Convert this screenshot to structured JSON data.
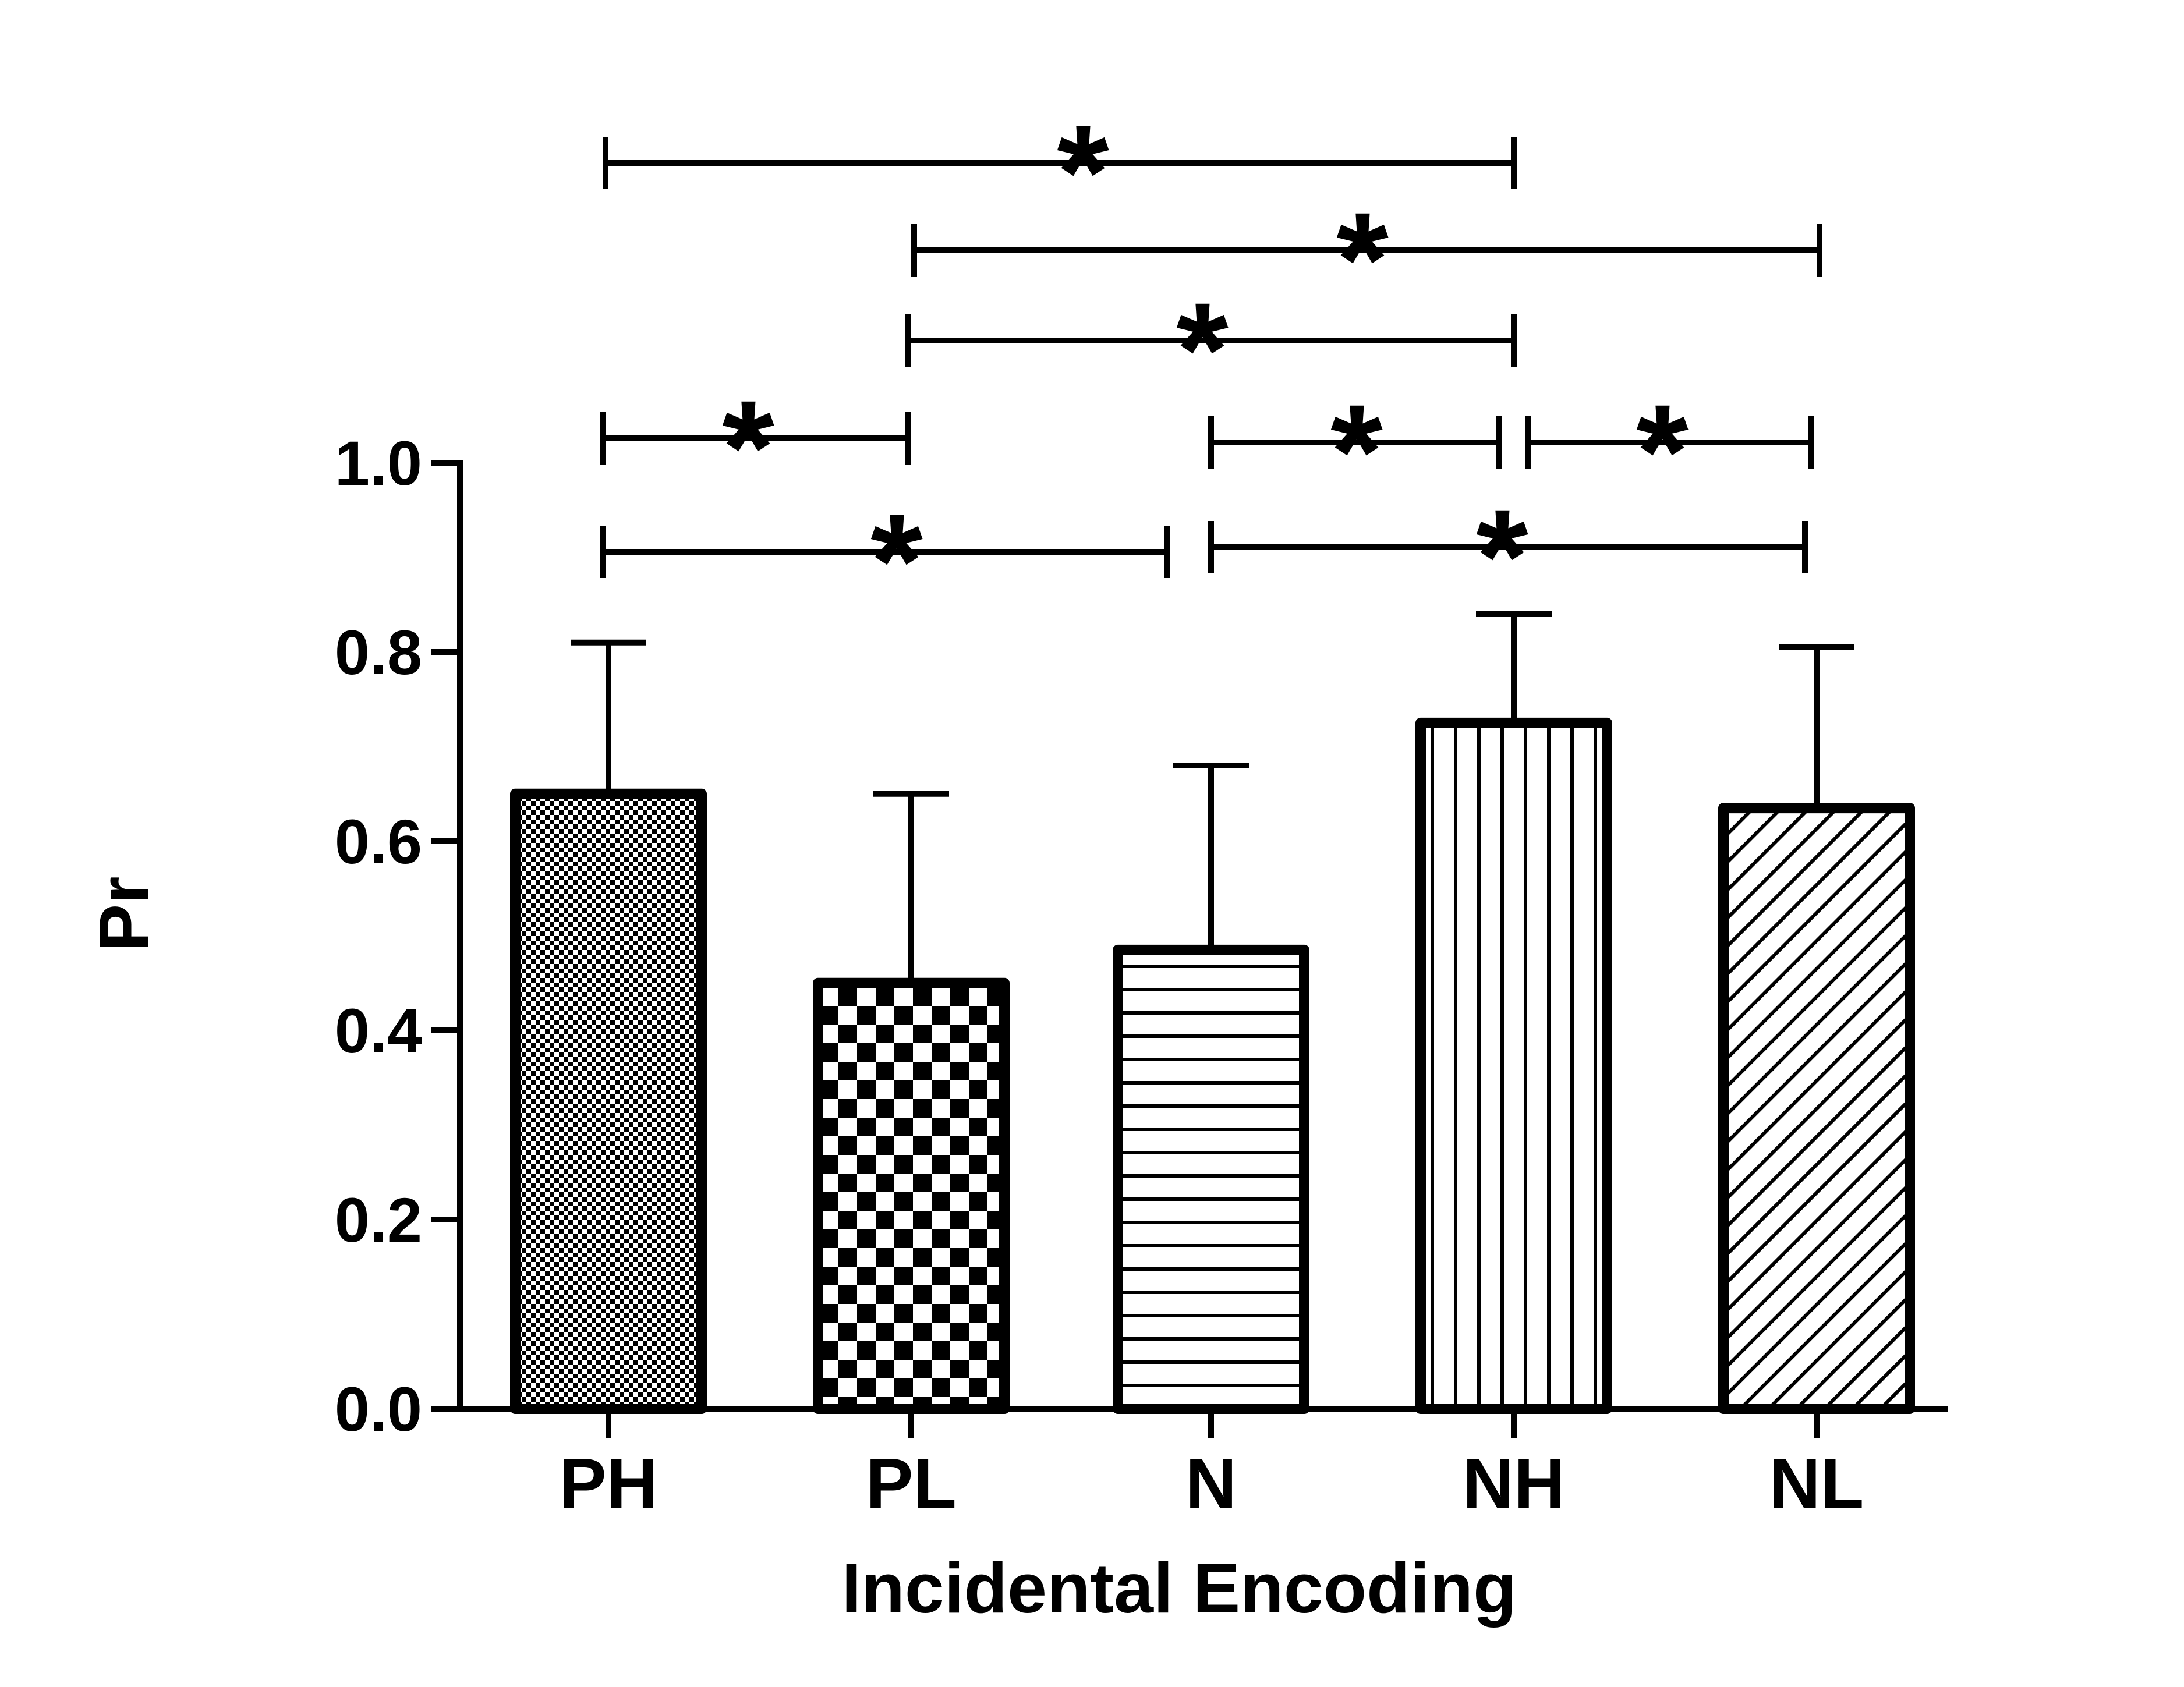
{
  "chart_data": {
    "type": "bar",
    "title": "",
    "xlabel": "Incidental Encoding",
    "ylabel": "Pr",
    "ylim": [
      0,
      1.0
    ],
    "yticks": [
      "0.0",
      "0.2",
      "0.4",
      "0.6",
      "0.8",
      "1.0"
    ],
    "categories": [
      "PH",
      "PL",
      "N",
      "NH",
      "NL"
    ],
    "values": [
      0.65,
      0.45,
      0.485,
      0.725,
      0.635
    ],
    "error_upper": [
      0.16,
      0.2,
      0.195,
      0.115,
      0.17
    ],
    "fills": [
      "fine-checker",
      "coarse-checker",
      "horizontal-lines",
      "vertical-lines",
      "diagonal-lines"
    ],
    "significance": [
      {
        "from": "PH",
        "to": "NH",
        "label": "*"
      },
      {
        "from": "PL",
        "to": "NL",
        "label": "*"
      },
      {
        "from": "PL",
        "to": "NH",
        "label": "*"
      },
      {
        "from": "PH",
        "to": "PL",
        "label": "*"
      },
      {
        "from": "N",
        "to": "NH",
        "label": "*"
      },
      {
        "from": "NH",
        "to": "NL",
        "label": "*"
      },
      {
        "from": "PH",
        "to": "N",
        "label": "*"
      },
      {
        "from": "N",
        "to": "NL",
        "label": "*"
      }
    ],
    "colors": {
      "ink": "#000000",
      "background": "#ffffff"
    }
  }
}
